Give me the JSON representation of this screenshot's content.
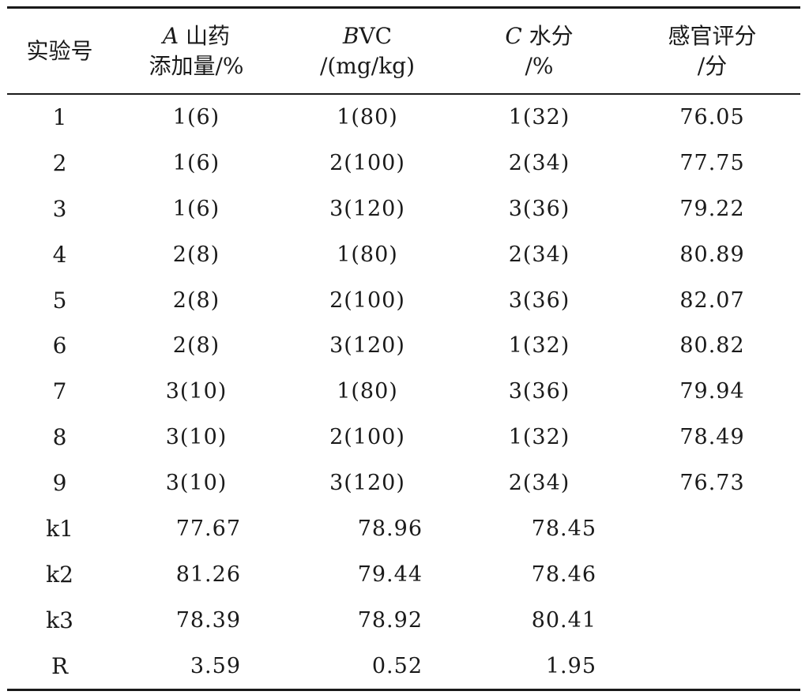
{
  "table": {
    "headers": [
      {
        "lines": [
          "实验号"
        ]
      },
      {
        "italic": "A",
        "text": " 山药",
        "line2": "添加量/%"
      },
      {
        "italic": "B",
        "text": "VC",
        "line2": "/(mg/kg)"
      },
      {
        "italic": "C",
        "text": " 水分",
        "line2": "/%"
      },
      {
        "lines": [
          "感官评分",
          "/分"
        ]
      }
    ],
    "runs": [
      [
        "1",
        "1(6)",
        "1(80)",
        "1(32)",
        "76.05"
      ],
      [
        "2",
        "1(6)",
        "2(100)",
        "2(34)",
        "77.75"
      ],
      [
        "3",
        "1(6)",
        "3(120)",
        "3(36)",
        "79.22"
      ],
      [
        "4",
        "2(8)",
        "1(80)",
        "2(34)",
        "80.89"
      ],
      [
        "5",
        "2(8)",
        "2(100)",
        "3(36)",
        "82.07"
      ],
      [
        "6",
        "2(8)",
        "3(120)",
        "1(32)",
        "80.82"
      ],
      [
        "7",
        "3(10)",
        "1(80)",
        "3(36)",
        "79.94"
      ],
      [
        "8",
        "3(10)",
        "2(100)",
        "1(32)",
        "78.49"
      ],
      [
        "9",
        "3(10)",
        "3(120)",
        "2(34)",
        "76.73"
      ]
    ],
    "stats": [
      [
        "k1",
        "77.67",
        "78.96",
        "78.45"
      ],
      [
        "k2",
        "81.26",
        "79.44",
        "78.46"
      ],
      [
        "k3",
        "78.39",
        "78.92",
        "80.41"
      ],
      [
        "R",
        "3.59",
        "0.52",
        "1.95"
      ]
    ]
  }
}
